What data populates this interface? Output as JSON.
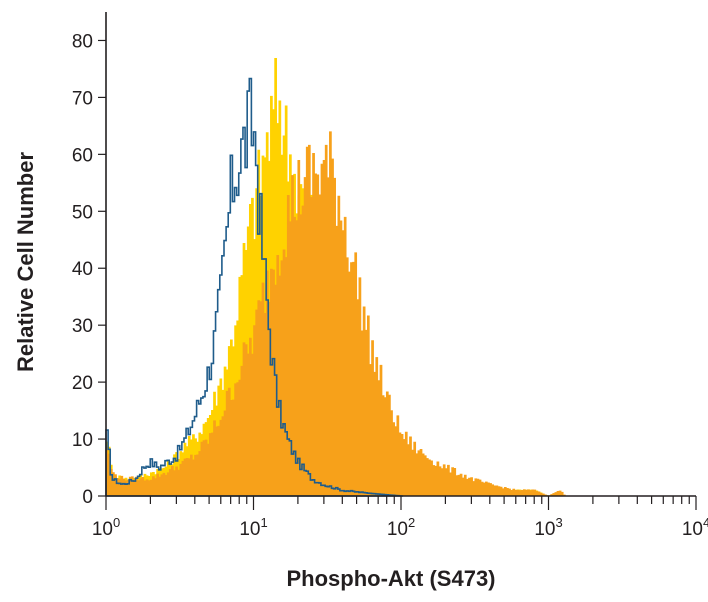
{
  "chart_data": {
    "type": "area",
    "title": "",
    "xlabel": "Phospho-Akt (S473)",
    "ylabel": "Relative Cell Number",
    "xscale": "log",
    "xlim": [
      1,
      10000
    ],
    "ylim": [
      0,
      85
    ],
    "x_ticks": [
      {
        "value": 1,
        "base": "10",
        "exp": "0"
      },
      {
        "value": 10,
        "base": "10",
        "exp": "1"
      },
      {
        "value": 100,
        "base": "10",
        "exp": "2"
      },
      {
        "value": 1000,
        "base": "10",
        "exp": "3"
      },
      {
        "value": 10000,
        "base": "10",
        "exp": "4"
      }
    ],
    "y_ticks": [
      "0",
      "10",
      "20",
      "30",
      "40",
      "50",
      "60",
      "70",
      "80"
    ],
    "grid": false,
    "legend": "none",
    "series": [
      {
        "style": "outline",
        "color": "#1f5c8b",
        "points": [
          [
            1.0,
            12
          ],
          [
            1.1,
            3
          ],
          [
            1.3,
            2
          ],
          [
            1.6,
            3
          ],
          [
            1.8,
            5
          ],
          [
            2.0,
            6
          ],
          [
            2.3,
            5
          ],
          [
            2.6,
            6
          ],
          [
            3.0,
            7
          ],
          [
            3.3,
            9
          ],
          [
            3.6,
            11
          ],
          [
            4.0,
            14
          ],
          [
            4.5,
            18
          ],
          [
            5.0,
            22
          ],
          [
            5.5,
            28
          ],
          [
            6.0,
            35
          ],
          [
            6.5,
            44
          ],
          [
            7.0,
            52
          ],
          [
            7.5,
            57
          ],
          [
            8.0,
            59
          ],
          [
            8.5,
            61
          ],
          [
            9.0,
            63
          ],
          [
            9.5,
            65
          ],
          [
            10.0,
            65
          ],
          [
            10.5,
            60
          ],
          [
            11.0,
            50
          ],
          [
            12.0,
            38
          ],
          [
            13.0,
            28
          ],
          [
            14.0,
            20
          ],
          [
            15.0,
            15
          ],
          [
            17.0,
            10
          ],
          [
            20.0,
            6
          ],
          [
            25.0,
            3
          ],
          [
            30.0,
            2
          ],
          [
            40.0,
            1
          ],
          [
            60.0,
            0.5
          ],
          [
            100.0,
            0
          ]
        ]
      },
      {
        "style": "filled",
        "color": "#ffd200",
        "points": [
          [
            1.0,
            12
          ],
          [
            1.1,
            4
          ],
          [
            1.3,
            3
          ],
          [
            1.6,
            3
          ],
          [
            2.0,
            4
          ],
          [
            2.5,
            5
          ],
          [
            3.0,
            7
          ],
          [
            3.5,
            9
          ],
          [
            4.0,
            10
          ],
          [
            5.0,
            14
          ],
          [
            6.0,
            20
          ],
          [
            7.0,
            26
          ],
          [
            8.0,
            35
          ],
          [
            9.0,
            44
          ],
          [
            10.0,
            50
          ],
          [
            11.0,
            55
          ],
          [
            12.0,
            60
          ],
          [
            13.0,
            64
          ],
          [
            14.0,
            68
          ],
          [
            15.0,
            70
          ],
          [
            16.0,
            65
          ],
          [
            18.0,
            58
          ],
          [
            20.0,
            54
          ],
          [
            22.0,
            52
          ],
          [
            25.0,
            50
          ],
          [
            30.0,
            47
          ],
          [
            35.0,
            42
          ],
          [
            40.0,
            36
          ],
          [
            50.0,
            28
          ],
          [
            60.0,
            20
          ],
          [
            70.0,
            14
          ],
          [
            80.0,
            11
          ],
          [
            100.0,
            7
          ],
          [
            130.0,
            5
          ],
          [
            200.0,
            3
          ],
          [
            300.0,
            2
          ],
          [
            400.0,
            1
          ],
          [
            600.0,
            1
          ],
          [
            800.0,
            1
          ],
          [
            1000.0,
            0
          ]
        ]
      },
      {
        "style": "filled",
        "color": "#f7a11a",
        "points": [
          [
            1.0,
            10
          ],
          [
            1.1,
            4
          ],
          [
            1.3,
            3
          ],
          [
            1.6,
            3
          ],
          [
            2.0,
            3
          ],
          [
            2.5,
            4
          ],
          [
            3.0,
            5
          ],
          [
            4.0,
            7
          ],
          [
            5.0,
            10
          ],
          [
            6.0,
            14
          ],
          [
            7.0,
            18
          ],
          [
            8.0,
            22
          ],
          [
            9.0,
            25
          ],
          [
            10.0,
            28
          ],
          [
            12.0,
            36
          ],
          [
            14.0,
            42
          ],
          [
            16.0,
            47
          ],
          [
            18.0,
            51
          ],
          [
            20.0,
            53
          ],
          [
            22.0,
            55
          ],
          [
            25.0,
            56
          ],
          [
            28.0,
            57
          ],
          [
            30.0,
            58
          ],
          [
            33.0,
            57
          ],
          [
            36.0,
            55
          ],
          [
            40.0,
            50
          ],
          [
            45.0,
            44
          ],
          [
            50.0,
            38
          ],
          [
            55.0,
            33
          ],
          [
            60.0,
            28
          ],
          [
            70.0,
            22
          ],
          [
            80.0,
            17
          ],
          [
            90.0,
            14
          ],
          [
            100.0,
            11
          ],
          [
            130.0,
            8
          ],
          [
            170.0,
            6
          ],
          [
            200.0,
            5
          ],
          [
            300.0,
            3
          ],
          [
            400.0,
            2
          ],
          [
            600.0,
            1
          ],
          [
            800.0,
            1
          ],
          [
            1000.0,
            0
          ],
          [
            1200.0,
            1
          ],
          [
            1300.0,
            0
          ]
        ]
      }
    ]
  }
}
